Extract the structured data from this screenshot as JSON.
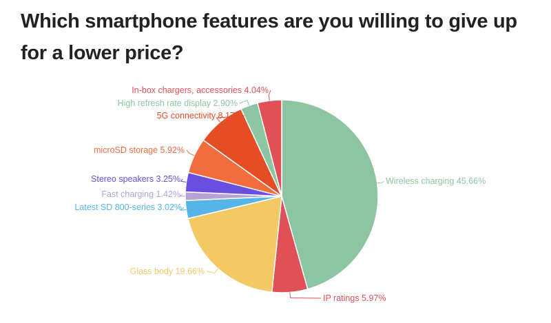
{
  "chart_data": {
    "type": "pie",
    "title": "Which smartphone features are you willing to give up for a lower price?",
    "slices": [
      {
        "label": "Wireless charging 45.66%",
        "value": 45.66,
        "color": "#8dc5a3"
      },
      {
        "label": "IP ratings 5.97%",
        "value": 5.97,
        "color": "#e05057"
      },
      {
        "label": "Glass body 19.66%",
        "value": 19.66,
        "color": "#f2c965"
      },
      {
        "label": "Latest SD 800-series 3.02%",
        "value": 3.02,
        "color": "#55b5e6"
      },
      {
        "label": "Fast charging 1.42%",
        "value": 1.42,
        "color": "#b7a2d4"
      },
      {
        "label": "Stereo speakers 3.25%",
        "value": 3.25,
        "color": "#6a4ee0"
      },
      {
        "label": "microSD storage 5.92%",
        "value": 5.92,
        "color": "#f26d3d"
      },
      {
        "label": "5G connectivity 8.17%",
        "value": 8.17,
        "color": "#e54d25"
      },
      {
        "label": "High refresh rate display 2.90%",
        "value": 2.9,
        "color": "#8dc5a3"
      },
      {
        "label": "In-box chargers, accessories 4.04%",
        "value": 4.04,
        "color": "#e05057"
      }
    ]
  }
}
